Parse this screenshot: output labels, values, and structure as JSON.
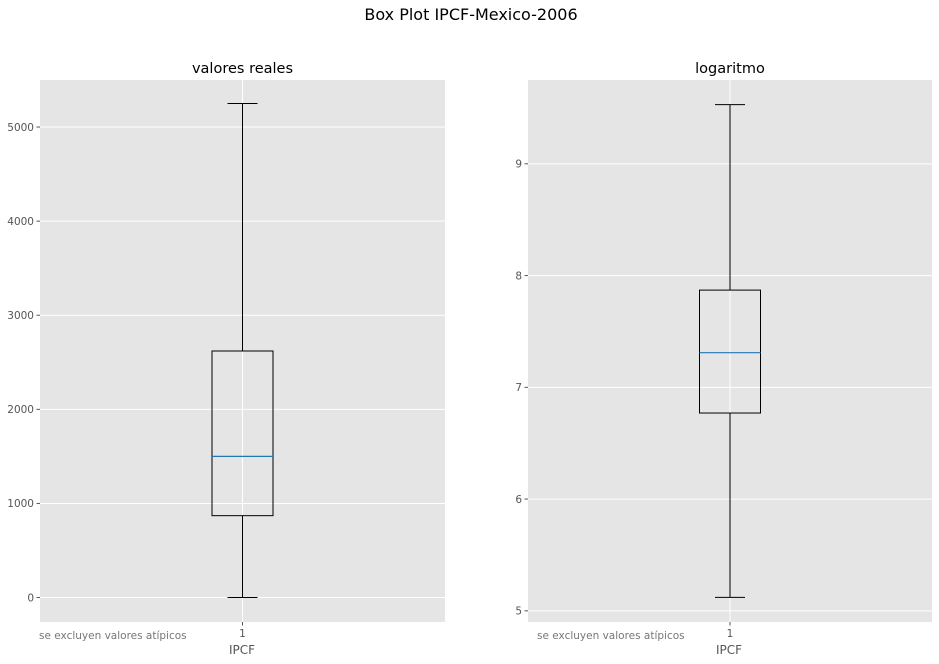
{
  "figure": {
    "title": "Box Plot IPCF-Mexico-2006"
  },
  "colors": {
    "axes_background": "#e5e5e5",
    "grid": "#ffffff",
    "box": "#000000",
    "median": "#1f77b4"
  },
  "chart_data": [
    {
      "type": "box",
      "title": "valores reales",
      "xlabel": "IPCF",
      "ylabel": "",
      "note": "se excluyen valores atípicos",
      "categories": [
        "1"
      ],
      "ylim": [
        -260,
        5500
      ],
      "yticks": [
        0,
        1000,
        2000,
        3000,
        4000,
        5000
      ],
      "ytick_labels": [
        "0",
        "1000",
        "2000",
        "3000",
        "4000",
        "5000"
      ],
      "grid": true,
      "boxes": [
        {
          "label": "1",
          "whisker_low": 0,
          "q1": 870,
          "median": 1500,
          "q3": 2620,
          "whisker_high": 5250
        }
      ]
    },
    {
      "type": "box",
      "title": "logaritmo",
      "xlabel": "IPCF",
      "ylabel": "",
      "note": "se excluyen valores atípicos",
      "categories": [
        "1"
      ],
      "ylim": [
        4.9,
        9.75
      ],
      "yticks": [
        5,
        6,
        7,
        8,
        9
      ],
      "ytick_labels": [
        "5",
        "6",
        "7",
        "8",
        "9"
      ],
      "grid": true,
      "boxes": [
        {
          "label": "1",
          "whisker_low": 5.12,
          "q1": 6.77,
          "median": 7.31,
          "q3": 7.87,
          "whisker_high": 9.53
        }
      ]
    }
  ]
}
